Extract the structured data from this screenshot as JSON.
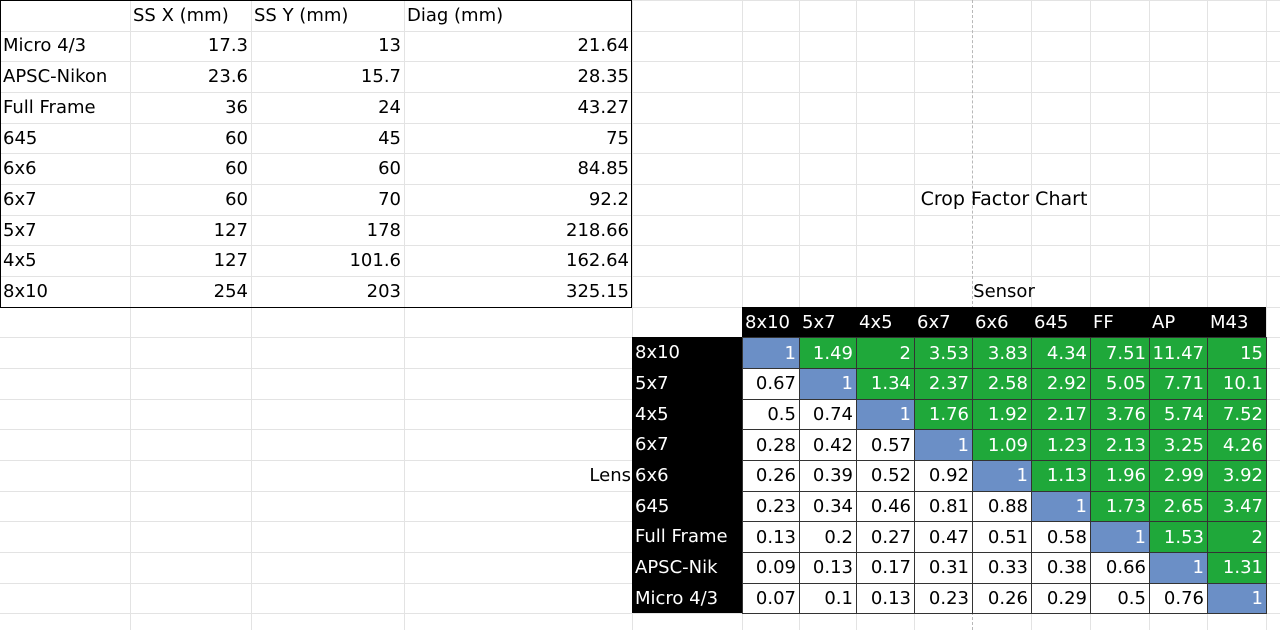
{
  "sizes_table": {
    "header": [
      "SS X (mm)",
      "SS Y (mm)",
      "Diag (mm)"
    ],
    "rows": [
      [
        "Micro 4/3",
        17.3,
        13,
        21.64
      ],
      [
        "APSC-Nikon",
        23.6,
        15.7,
        28.35
      ],
      [
        "Full Frame",
        36,
        24,
        43.27
      ],
      [
        "645",
        60,
        45,
        75
      ],
      [
        "6x6",
        60,
        60,
        84.85
      ],
      [
        "6x7",
        60,
        70,
        92.2
      ],
      [
        "5x7",
        127,
        178,
        218.66
      ],
      [
        "4x5",
        127,
        101.6,
        162.64
      ],
      [
        "8x10",
        254,
        203,
        325.15
      ]
    ]
  },
  "crop_chart": {
    "title": "Crop Factor Chart",
    "sensor_label": "Sensor",
    "lens_label": "Lens",
    "columns": [
      "8x10",
      "5x7",
      "4x5",
      "6x7",
      "6x6",
      "645",
      "FF",
      "AP",
      "M43"
    ],
    "rows": [
      {
        "label": "8x10",
        "values": [
          1,
          1.49,
          2,
          3.53,
          3.83,
          4.34,
          7.51,
          11.47,
          15
        ]
      },
      {
        "label": "5x7",
        "values": [
          0.67,
          1,
          1.34,
          2.37,
          2.58,
          2.92,
          5.05,
          7.71,
          10.1
        ]
      },
      {
        "label": "4x5",
        "values": [
          0.5,
          0.74,
          1,
          1.76,
          1.92,
          2.17,
          3.76,
          5.74,
          7.52
        ]
      },
      {
        "label": "6x7",
        "values": [
          0.28,
          0.42,
          0.57,
          1,
          1.09,
          1.23,
          2.13,
          3.25,
          4.26
        ]
      },
      {
        "label": "6x6",
        "values": [
          0.26,
          0.39,
          0.52,
          0.92,
          1,
          1.13,
          1.96,
          2.99,
          3.92
        ]
      },
      {
        "label": "645",
        "values": [
          0.23,
          0.34,
          0.46,
          0.81,
          0.88,
          1,
          1.73,
          2.65,
          3.47
        ]
      },
      {
        "label": "Full Frame",
        "values": [
          0.13,
          0.2,
          0.27,
          0.47,
          0.51,
          0.58,
          1,
          1.53,
          2
        ]
      },
      {
        "label": "APSC-Nik",
        "values": [
          0.09,
          0.13,
          0.17,
          0.31,
          0.33,
          0.38,
          0.66,
          1,
          1.31
        ]
      },
      {
        "label": "Micro 4/3",
        "values": [
          0.07,
          0.1,
          0.13,
          0.23,
          0.26,
          0.29,
          0.5,
          0.76,
          1
        ]
      }
    ]
  }
}
